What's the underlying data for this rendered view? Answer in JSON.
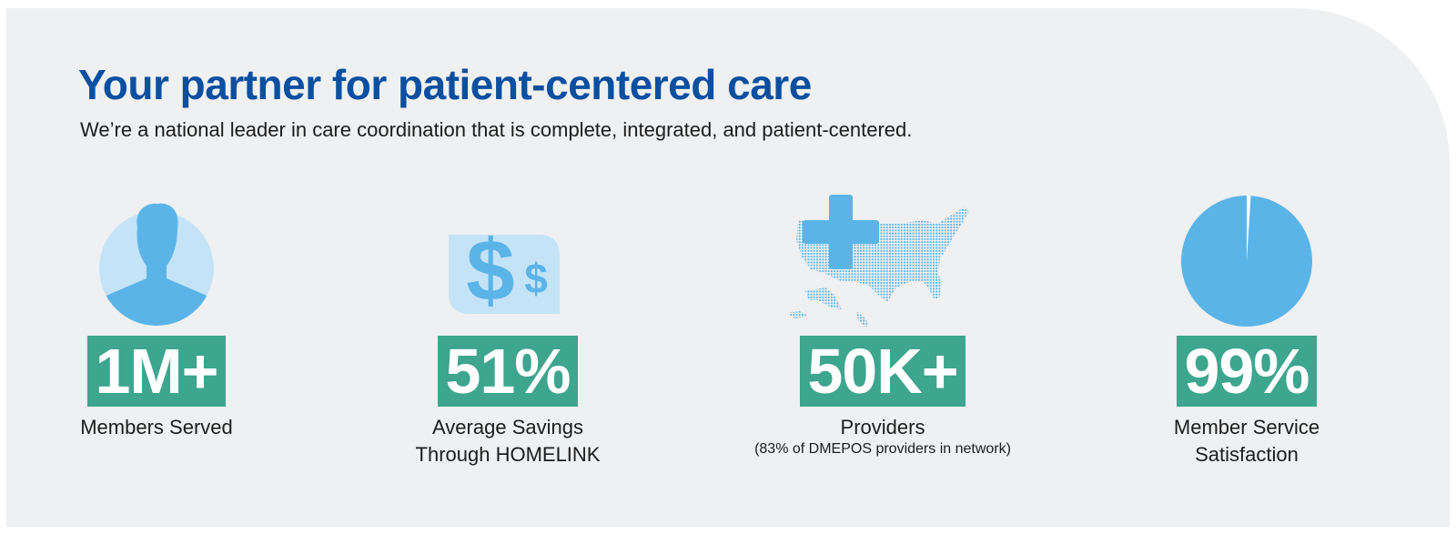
{
  "header": {
    "title": "Your partner for patient-centered care",
    "subtitle": "We’re a national leader in care coordination that is complete, integrated, and patient-centered."
  },
  "stats": [
    {
      "value": "1M+",
      "label": "Members Served",
      "icon": "person-silhouette-icon"
    },
    {
      "value": "51%",
      "label_line1": "Average Savings",
      "label_line2": "Through HOMELINK",
      "icon": "dollar-sign-icon"
    },
    {
      "value": "50K+",
      "label": "Providers",
      "note": "(83% of DMEPOS providers in network)",
      "icon": "us-map-medical-cross-icon"
    },
    {
      "value": "99%",
      "label_line1": "Member Service",
      "label_line2": "Satisfaction",
      "icon": "pie-chart-icon",
      "fraction": 0.99
    }
  ],
  "colors": {
    "title": "#0b4fa0",
    "accent_green": "#3ea58f",
    "icon_blue": "#5bb4e8",
    "icon_light_blue": "#c5e3f7",
    "panel_bg": "#eff0f1"
  }
}
